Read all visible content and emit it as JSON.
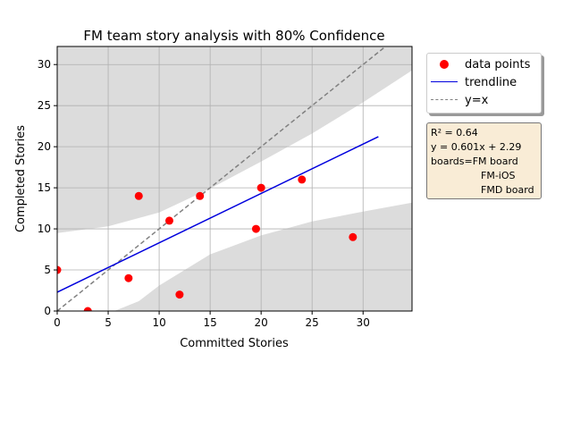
{
  "chart_data": {
    "type": "scatter",
    "title": "FM team story analysis with 80% Confidence",
    "xlabel": "Committed Stories",
    "ylabel": "Completed Stories",
    "xlim": [
      0,
      34.8
    ],
    "ylim": [
      0,
      32.2
    ],
    "xticks": [
      "0",
      "5",
      "10",
      "15",
      "20",
      "25",
      "30"
    ],
    "yticks": [
      "0",
      "5",
      "10",
      "15",
      "20",
      "25",
      "30"
    ],
    "grid": true,
    "points": [
      {
        "x": 0,
        "y": 5
      },
      {
        "x": 3,
        "y": 0
      },
      {
        "x": 7,
        "y": 4
      },
      {
        "x": 8,
        "y": 14
      },
      {
        "x": 11,
        "y": 11
      },
      {
        "x": 12,
        "y": 2
      },
      {
        "x": 14,
        "y": 14
      },
      {
        "x": 19.5,
        "y": 10
      },
      {
        "x": 20,
        "y": 15
      },
      {
        "x": 24,
        "y": 16
      },
      {
        "x": 29,
        "y": 9
      }
    ],
    "trendline": {
      "slope": 0.601,
      "intercept": 2.29,
      "x_start": 0,
      "x_end": 31.5
    },
    "identity_line": true,
    "confidence_band": {
      "level": "80%",
      "upper": [
        [
          0,
          9.5
        ],
        [
          5,
          10.3
        ],
        [
          10,
          12.0
        ],
        [
          15,
          14.9
        ],
        [
          20,
          18.2
        ],
        [
          25,
          21.6
        ],
        [
          30,
          25.4
        ],
        [
          34.8,
          29.3
        ]
      ],
      "lower": [
        [
          5.6,
          0
        ],
        [
          8,
          1.2
        ],
        [
          10,
          3.1
        ],
        [
          15,
          6.9
        ],
        [
          20,
          9.2
        ],
        [
          25,
          10.9
        ],
        [
          30,
          12.1
        ],
        [
          34.8,
          13.2
        ]
      ]
    },
    "legend": {
      "position": "outside-top-right",
      "entries": [
        "data points",
        "trendline",
        "y=x"
      ]
    },
    "annotation": {
      "r2": "R² = 0.64",
      "equation": "y = 0.601x + 2.29",
      "boards_label": "boards=FM board",
      "boards_more": [
        "FM-iOS",
        "FMD board"
      ]
    },
    "colors": {
      "points": "#ff0000",
      "trendline": "#0000dd",
      "identity": "#808080",
      "band": "#dcdcdc",
      "annotation_bg": "#f9ecd6"
    }
  }
}
